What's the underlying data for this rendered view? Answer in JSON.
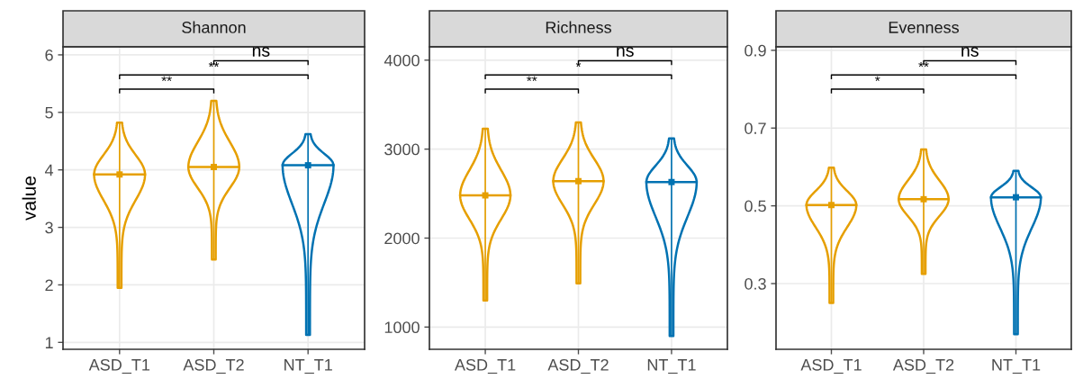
{
  "chart_data": [
    {
      "type": "scatter",
      "title": "Shannon",
      "ylabel": "value",
      "categories": [
        "ASD_T1",
        "ASD_T2",
        "NT_T1"
      ],
      "values": [
        3.92,
        4.05,
        4.08
      ],
      "errors": [
        [
          1.95,
          4.82
        ],
        [
          2.44,
          5.2
        ],
        [
          1.13,
          4.62
        ]
      ],
      "colors": [
        "#e69f00",
        "#e69f00",
        "#0072b2"
      ],
      "ylim": [
        0.88,
        6.14
      ],
      "yticks": [
        1,
        2,
        3,
        4,
        5,
        6
      ],
      "grid": true,
      "marker": "square",
      "annotations": [
        "**",
        "**",
        "ns"
      ]
    },
    {
      "type": "scatter",
      "title": "Richness",
      "categories": [
        "ASD_T1",
        "ASD_T2",
        "NT_T1"
      ],
      "values": [
        2480,
        2640,
        2630
      ],
      "errors": [
        [
          1300,
          3230
        ],
        [
          1490,
          3300
        ],
        [
          900,
          3120
        ]
      ],
      "colors": [
        "#e69f00",
        "#e69f00",
        "#0072b2"
      ],
      "ylim": [
        750,
        4150
      ],
      "yticks": [
        1000,
        2000,
        3000,
        4000
      ],
      "grid": true,
      "marker": "square",
      "annotations": [
        "**",
        "*",
        "ns"
      ]
    },
    {
      "type": "scatter",
      "title": "Evenness",
      "categories": [
        "ASD_T1",
        "ASD_T2",
        "NT_T1"
      ],
      "values": [
        0.502,
        0.517,
        0.522
      ],
      "errors": [
        [
          0.25,
          0.598
        ],
        [
          0.325,
          0.645
        ],
        [
          0.17,
          0.59
        ]
      ],
      "colors": [
        "#e69f00",
        "#e69f00",
        "#0072b2"
      ],
      "ylim": [
        0.131,
        0.909
      ],
      "yticks": [
        0.3,
        0.5,
        0.7,
        0.9
      ],
      "grid": true,
      "marker": "square",
      "annotations": [
        "*",
        "**",
        "ns"
      ]
    }
  ]
}
